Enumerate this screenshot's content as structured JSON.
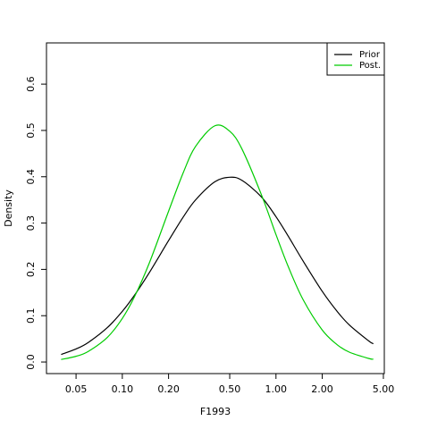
{
  "chart_data": {
    "type": "line",
    "x_label": "F1993",
    "y_label": "Density",
    "log_x": true,
    "x": [
      0.04,
      0.05,
      0.06,
      0.08,
      0.1,
      0.12,
      0.15,
      0.2,
      0.25,
      0.3,
      0.4,
      0.5,
      0.6,
      0.8,
      1.0,
      1.2,
      1.5,
      2,
      2.5,
      3,
      4,
      4.3
    ],
    "series": [
      {
        "name": "Prior",
        "color": "#000000",
        "values": [
          0.0164,
          0.0282,
          0.0421,
          0.0744,
          0.1093,
          0.1441,
          0.1932,
          0.2621,
          0.3138,
          0.3501,
          0.3891,
          0.3989,
          0.3923,
          0.3572,
          0.3138,
          0.272,
          0.2182,
          0.1526,
          0.1093,
          0.0801,
          0.0459,
          0.0394
        ]
      },
      {
        "name": "Post.",
        "color": "#00cc00",
        "values": [
          0.0054,
          0.0124,
          0.0228,
          0.0533,
          0.0941,
          0.1409,
          0.2141,
          0.3255,
          0.4099,
          0.4657,
          0.51,
          0.4983,
          0.4602,
          0.363,
          0.2752,
          0.2065,
          0.1349,
          0.069,
          0.0374,
          0.0213,
          0.0078,
          0.006
        ]
      }
    ],
    "xlim": [
      0.0321,
      5.07
    ],
    "ylim": [
      -0.025,
      0.689
    ],
    "xticks": [
      0.05,
      {
        "value": 0.1,
        "label": "0.10"
      },
      {
        "value": 0.2,
        "label": "0.20"
      },
      {
        "value": 0.5,
        "label": "0.50"
      },
      {
        "value": 1,
        "label": "1.00"
      },
      {
        "value": 2,
        "label": "2.00"
      },
      {
        "value": 5,
        "label": "5.00"
      }
    ],
    "yticks": [
      {
        "value": 0,
        "label": "0.0"
      },
      0.1,
      0.2,
      0.3,
      0.4,
      0.5,
      0.6
    ],
    "legend": "topright"
  }
}
